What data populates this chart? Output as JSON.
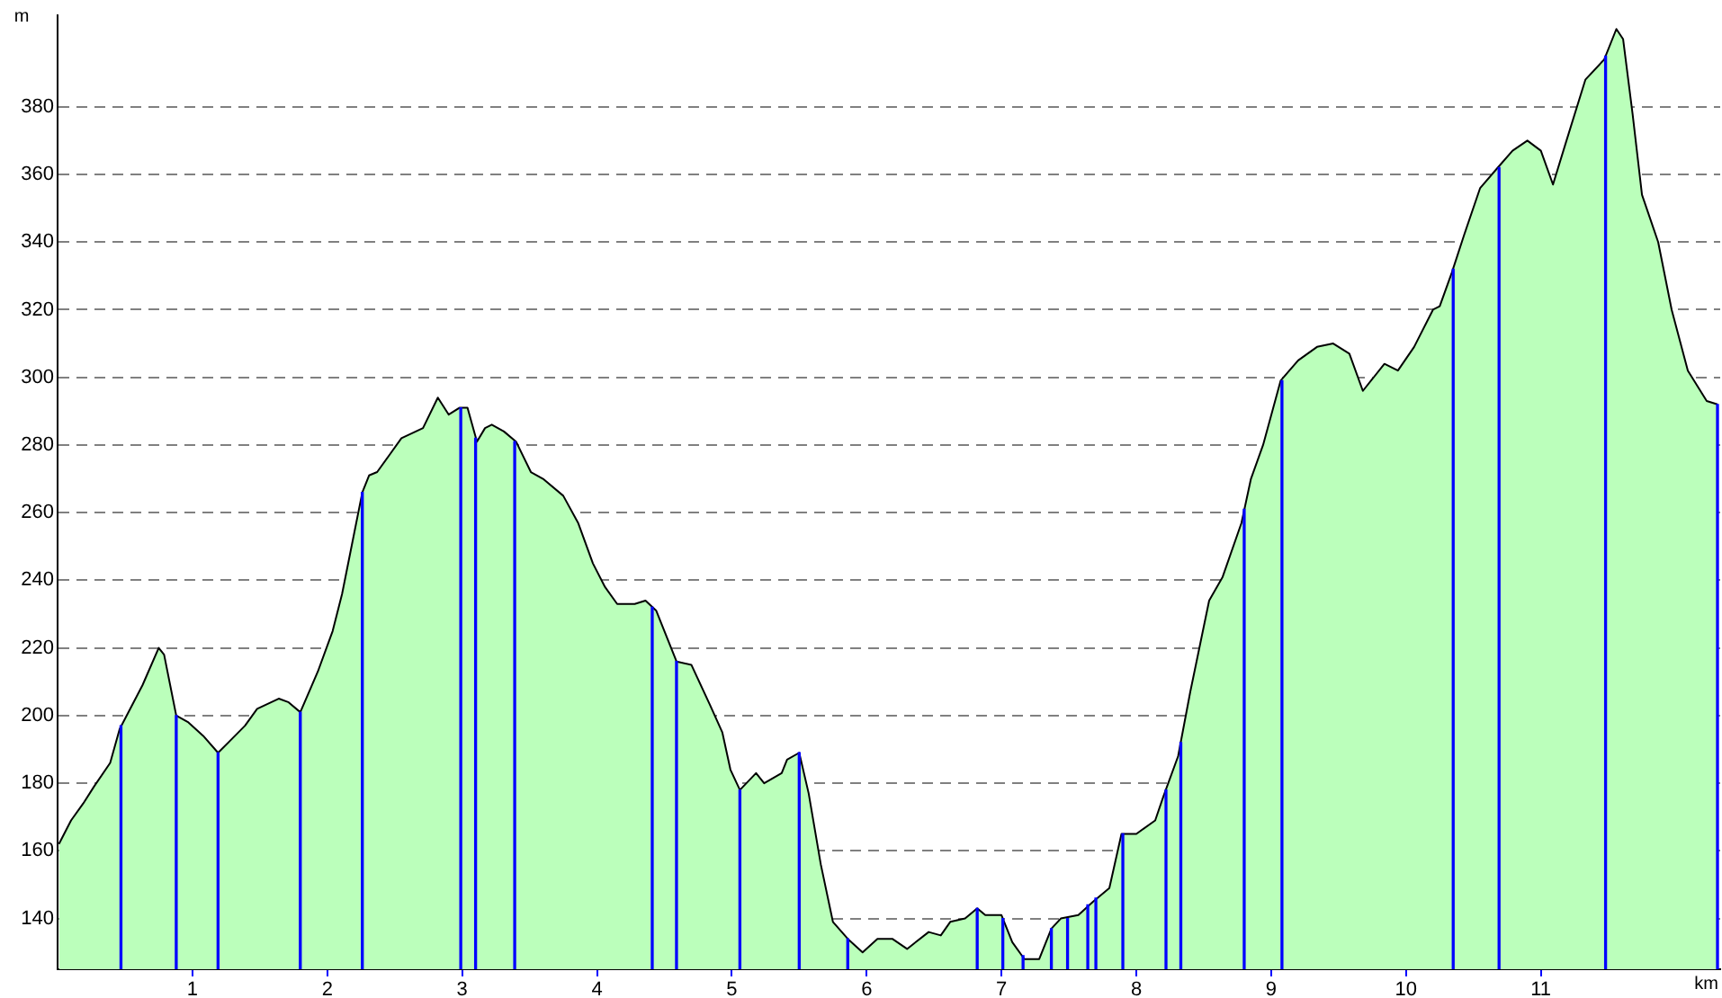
{
  "chart_data": {
    "type": "area",
    "xlabel": "km",
    "ylabel": "m",
    "x": [
      0.01,
      0.1,
      0.19,
      0.27,
      0.39,
      0.46,
      0.63,
      0.75,
      0.79,
      0.88,
      0.97,
      1.08,
      1.19,
      1.39,
      1.48,
      1.64,
      1.71,
      1.8,
      1.93,
      2.04,
      2.11,
      2.2,
      2.26,
      2.31,
      2.37,
      2.46,
      2.55,
      2.71,
      2.82,
      2.9,
      2.98,
      3.04,
      3.11,
      3.17,
      3.22,
      3.31,
      3.4,
      3.51,
      3.6,
      3.75,
      3.86,
      3.97,
      4.06,
      4.15,
      4.28,
      4.36,
      4.44,
      4.53,
      4.59,
      4.7,
      4.84,
      4.93,
      4.99,
      5.06,
      5.18,
      5.24,
      5.37,
      5.41,
      5.5,
      5.57,
      5.66,
      5.75,
      5.86,
      5.97,
      6.08,
      6.19,
      6.3,
      6.46,
      6.55,
      6.62,
      6.73,
      6.82,
      6.88,
      7.0,
      7.08,
      7.17,
      7.28,
      7.37,
      7.44,
      7.57,
      7.68,
      7.8,
      7.89,
      8.0,
      8.14,
      8.2,
      8.31,
      8.4,
      8.54,
      8.64,
      8.78,
      8.85,
      8.94,
      9.07,
      9.2,
      9.34,
      9.46,
      9.58,
      9.68,
      9.84,
      9.94,
      10.06,
      10.2,
      10.25,
      10.34,
      10.43,
      10.55,
      10.68,
      10.79,
      10.9,
      11.0,
      11.09,
      11.19,
      11.33,
      11.47,
      11.56,
      11.61,
      11.68,
      11.75,
      11.87,
      11.97,
      12.09,
      12.23,
      12.31
    ],
    "series": [
      {
        "color": "#bbffbb",
        "values": [
          162,
          169,
          174,
          179,
          186,
          196,
          209,
          220,
          218,
          200,
          198,
          194,
          189,
          197,
          202,
          205,
          204,
          201,
          213,
          225,
          236,
          254,
          266,
          271,
          272,
          277,
          282,
          285,
          294,
          289,
          291,
          291,
          281,
          285,
          286,
          284,
          281,
          272,
          270,
          265,
          257,
          245,
          238,
          233,
          233,
          234,
          231,
          222,
          216,
          215,
          203,
          195,
          184,
          178,
          183,
          180,
          183,
          187,
          189,
          177,
          156,
          139,
          134,
          130,
          134,
          134,
          131,
          136,
          135,
          139,
          140,
          143,
          141,
          141,
          133,
          128,
          128,
          137,
          140,
          141,
          145,
          149,
          165,
          165,
          169,
          176,
          188,
          207,
          234,
          241,
          257,
          270,
          280,
          299,
          305,
          309,
          310,
          307,
          296,
          304,
          302,
          309,
          320,
          321,
          331,
          342,
          356,
          362,
          367,
          370,
          367,
          357,
          370,
          388,
          394,
          403,
          400,
          378,
          354,
          340,
          320,
          302,
          293,
          292
        ]
      },
      {
        "type": "bar",
        "color": "#0000ff",
        "x": [
          0.47,
          0.88,
          1.19,
          1.8,
          2.26,
          2.99,
          3.1,
          3.39,
          4.41,
          4.59,
          5.06,
          5.5,
          5.86,
          6.82,
          7.01,
          7.16,
          7.37,
          7.49,
          7.64,
          7.7,
          7.9,
          8.22,
          8.33,
          8.8,
          9.08,
          10.35,
          10.69,
          11.48,
          12.31
        ],
        "values": [
          197,
          200,
          189,
          201,
          266,
          291,
          282,
          281,
          232,
          216,
          178,
          189,
          134,
          143,
          140,
          129,
          137,
          140,
          144,
          146,
          165,
          178,
          192,
          261,
          299,
          332,
          362,
          395,
          292
        ]
      }
    ],
    "xlim": [
      0,
      12.33
    ],
    "xticks": [
      1,
      2,
      3,
      4,
      5,
      6,
      7,
      8,
      9,
      10,
      11
    ],
    "ylim": [
      125,
      407
    ],
    "yticks": [
      140,
      160,
      180,
      200,
      220,
      240,
      260,
      280,
      300,
      320,
      340,
      360,
      380
    ],
    "grid": "y"
  }
}
